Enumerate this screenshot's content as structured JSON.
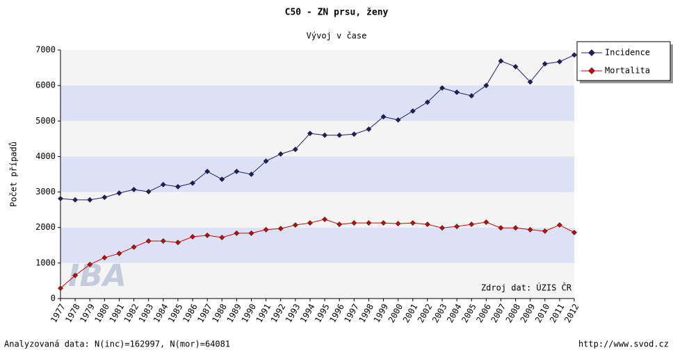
{
  "chart_data": {
    "type": "line",
    "title": "C50 - ZN prsu, ženy",
    "subtitle": "Vývoj v čase",
    "y_label": "Počet případů",
    "annotation": "Zdroj dat: ÚZIS ČR",
    "watermark": "IBA",
    "footer_left": "Analyzovaná data: N(inc)=162997, N(mor)=64081",
    "footer_right": "http://www.svod.cz",
    "categories": [
      "1977",
      "1978",
      "1979",
      "1980",
      "1981",
      "1982",
      "1983",
      "1984",
      "1985",
      "1986",
      "1987",
      "1988",
      "1989",
      "1990",
      "1991",
      "1992",
      "1993",
      "1994",
      "1995",
      "1996",
      "1997",
      "1998",
      "1999",
      "2000",
      "2001",
      "2002",
      "2003",
      "2004",
      "2005",
      "2006",
      "2007",
      "2008",
      "2009",
      "2010",
      "2011",
      "2012"
    ],
    "series": [
      {
        "name": "Incidence",
        "color": "#1c1c6b",
        "values": [
          2815,
          2780,
          2780,
          2850,
          2970,
          3070,
          3010,
          3210,
          3150,
          3250,
          3580,
          3360,
          3580,
          3500,
          3870,
          4070,
          4200,
          4650,
          4600,
          4600,
          4630,
          4770,
          5120,
          5030,
          5280,
          5530,
          5930,
          5810,
          5710,
          6000,
          6690,
          6530,
          6100,
          6610,
          6670,
          6860
        ]
      },
      {
        "name": "Mortalita",
        "color": "#d40000",
        "values": [
          290,
          650,
          960,
          1150,
          1270,
          1450,
          1620,
          1620,
          1580,
          1740,
          1780,
          1720,
          1840,
          1840,
          1940,
          1970,
          2070,
          2130,
          2230,
          2090,
          2130,
          2130,
          2130,
          2110,
          2130,
          2090,
          1990,
          2030,
          2090,
          2150,
          1990,
          1990,
          1940,
          1900,
          2070,
          1860
        ]
      }
    ],
    "ylim": [
      0,
      7000
    ],
    "yticks": [
      0,
      1000,
      2000,
      3000,
      4000,
      5000,
      6000,
      7000
    ],
    "band_colors": [
      "#f4f4f4",
      "#dde1f5"
    ],
    "legend": "outside-top-right"
  }
}
